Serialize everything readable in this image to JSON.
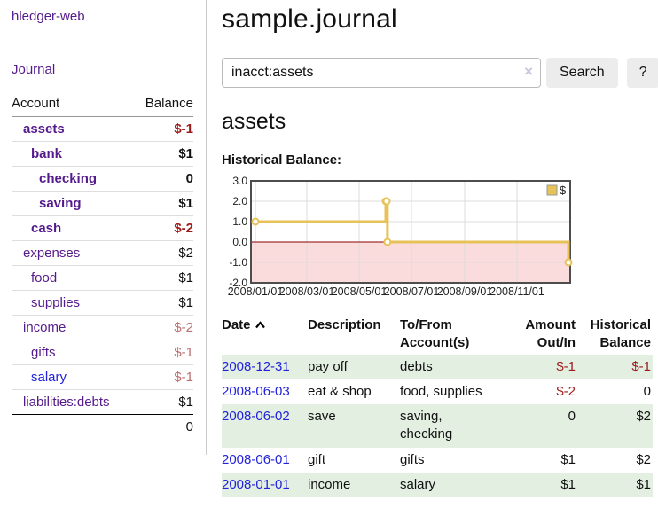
{
  "colors": {
    "link_purple": "#551a8b",
    "link_blue": "#2222dd",
    "negative": "#9c1b1b",
    "negative_dim": "#b96f6f",
    "stripe_green": "#e2efe1",
    "chart_line": "#e7c258",
    "chart_negative_bg": "#fbdcdc",
    "accent_zero_line": "#8b0000"
  },
  "app": {
    "brand": "hledger-web",
    "nav_journal": "Journal"
  },
  "sidebar": {
    "header": {
      "account": "Account",
      "balance": "Balance"
    },
    "rows": [
      {
        "name": "assets",
        "balance": "$-1",
        "depth": 1,
        "bold": true,
        "balance_style": "neg",
        "color": "purple"
      },
      {
        "name": "bank",
        "balance": "$1",
        "depth": 2,
        "bold": true,
        "balance_style": "",
        "color": "purple"
      },
      {
        "name": "checking",
        "balance": "0",
        "depth": 3,
        "bold": true,
        "balance_style": "",
        "color": "purple"
      },
      {
        "name": "saving",
        "balance": "$1",
        "depth": 3,
        "bold": true,
        "balance_style": "",
        "color": "purple"
      },
      {
        "name": "cash",
        "balance": "$-2",
        "depth": 2,
        "bold": true,
        "balance_style": "neg",
        "color": "purple"
      },
      {
        "name": "expenses",
        "balance": "$2",
        "depth": 1,
        "bold": false,
        "balance_style": "",
        "color": "purple"
      },
      {
        "name": "food",
        "balance": "$1",
        "depth": 2,
        "bold": false,
        "balance_style": "",
        "color": "purple"
      },
      {
        "name": "supplies",
        "balance": "$1",
        "depth": 2,
        "bold": false,
        "balance_style": "",
        "color": "purple"
      },
      {
        "name": "income",
        "balance": "$-2",
        "depth": 1,
        "bold": false,
        "balance_style": "dim",
        "color": "purple"
      },
      {
        "name": "gifts",
        "balance": "$-1",
        "depth": 2,
        "bold": false,
        "balance_style": "dim",
        "color": "purple"
      },
      {
        "name": "salary",
        "balance": "$-1",
        "depth": 2,
        "bold": false,
        "balance_style": "dim",
        "color": "blue"
      },
      {
        "name": "liabilities:debts",
        "balance": "$1",
        "depth": 1,
        "bold": false,
        "balance_style": "",
        "color": "purple"
      }
    ],
    "total": "0"
  },
  "header": {
    "title": "sample.journal"
  },
  "search": {
    "value": "inacct:assets",
    "clear_icon": "×",
    "button_label": "Search",
    "help_label": "?"
  },
  "account_page": {
    "title": "assets",
    "chart_label": "Historical Balance:"
  },
  "chart_data": {
    "type": "line",
    "step": true,
    "title": "Historical Balance:",
    "series": [
      {
        "name": "$",
        "points": [
          [
            "2008-01-01",
            1
          ],
          [
            "2008-06-01",
            2
          ],
          [
            "2008-06-02",
            2
          ],
          [
            "2008-06-03",
            0
          ],
          [
            "2008-12-31",
            -1
          ]
        ]
      }
    ],
    "x_range": [
      "2008-01-01",
      "2008-12-31"
    ],
    "xticks": [
      "2008/01/01",
      "2008/03/01",
      "2008/05/01",
      "2008/07/01",
      "2008/09/01",
      "2008/11/01"
    ],
    "yticks": [
      "3.0",
      "2.0",
      "1.0",
      "0.0",
      "-1.0",
      "-2.0"
    ],
    "ylim": [
      -2,
      3
    ],
    "grid": true,
    "legend_position": "top-right",
    "negative_region_shaded": true
  },
  "register": {
    "columns": [
      "Date",
      "Description",
      "To/From Account(s)",
      "Amount Out/In",
      "Historical Balance"
    ],
    "rows": [
      {
        "date": "2008-12-31",
        "description": "pay off",
        "accounts": "debts",
        "amount": "$-1",
        "balance": "$-1",
        "amount_style": "neg",
        "balance_style": "neg"
      },
      {
        "date": "2008-06-03",
        "description": "eat & shop",
        "accounts": "food, supplies",
        "amount": "$-2",
        "balance": "0",
        "amount_style": "neg",
        "balance_style": ""
      },
      {
        "date": "2008-06-02",
        "description": "save",
        "accounts": "saving,\nchecking",
        "amount": "0",
        "balance": "$2",
        "amount_style": "",
        "balance_style": ""
      },
      {
        "date": "2008-06-01",
        "description": "gift",
        "accounts": "gifts",
        "amount": "$1",
        "balance": "$2",
        "amount_style": "",
        "balance_style": ""
      },
      {
        "date": "2008-01-01",
        "description": "income",
        "accounts": "salary",
        "amount": "$1",
        "balance": "$1",
        "amount_style": "",
        "balance_style": ""
      }
    ]
  }
}
